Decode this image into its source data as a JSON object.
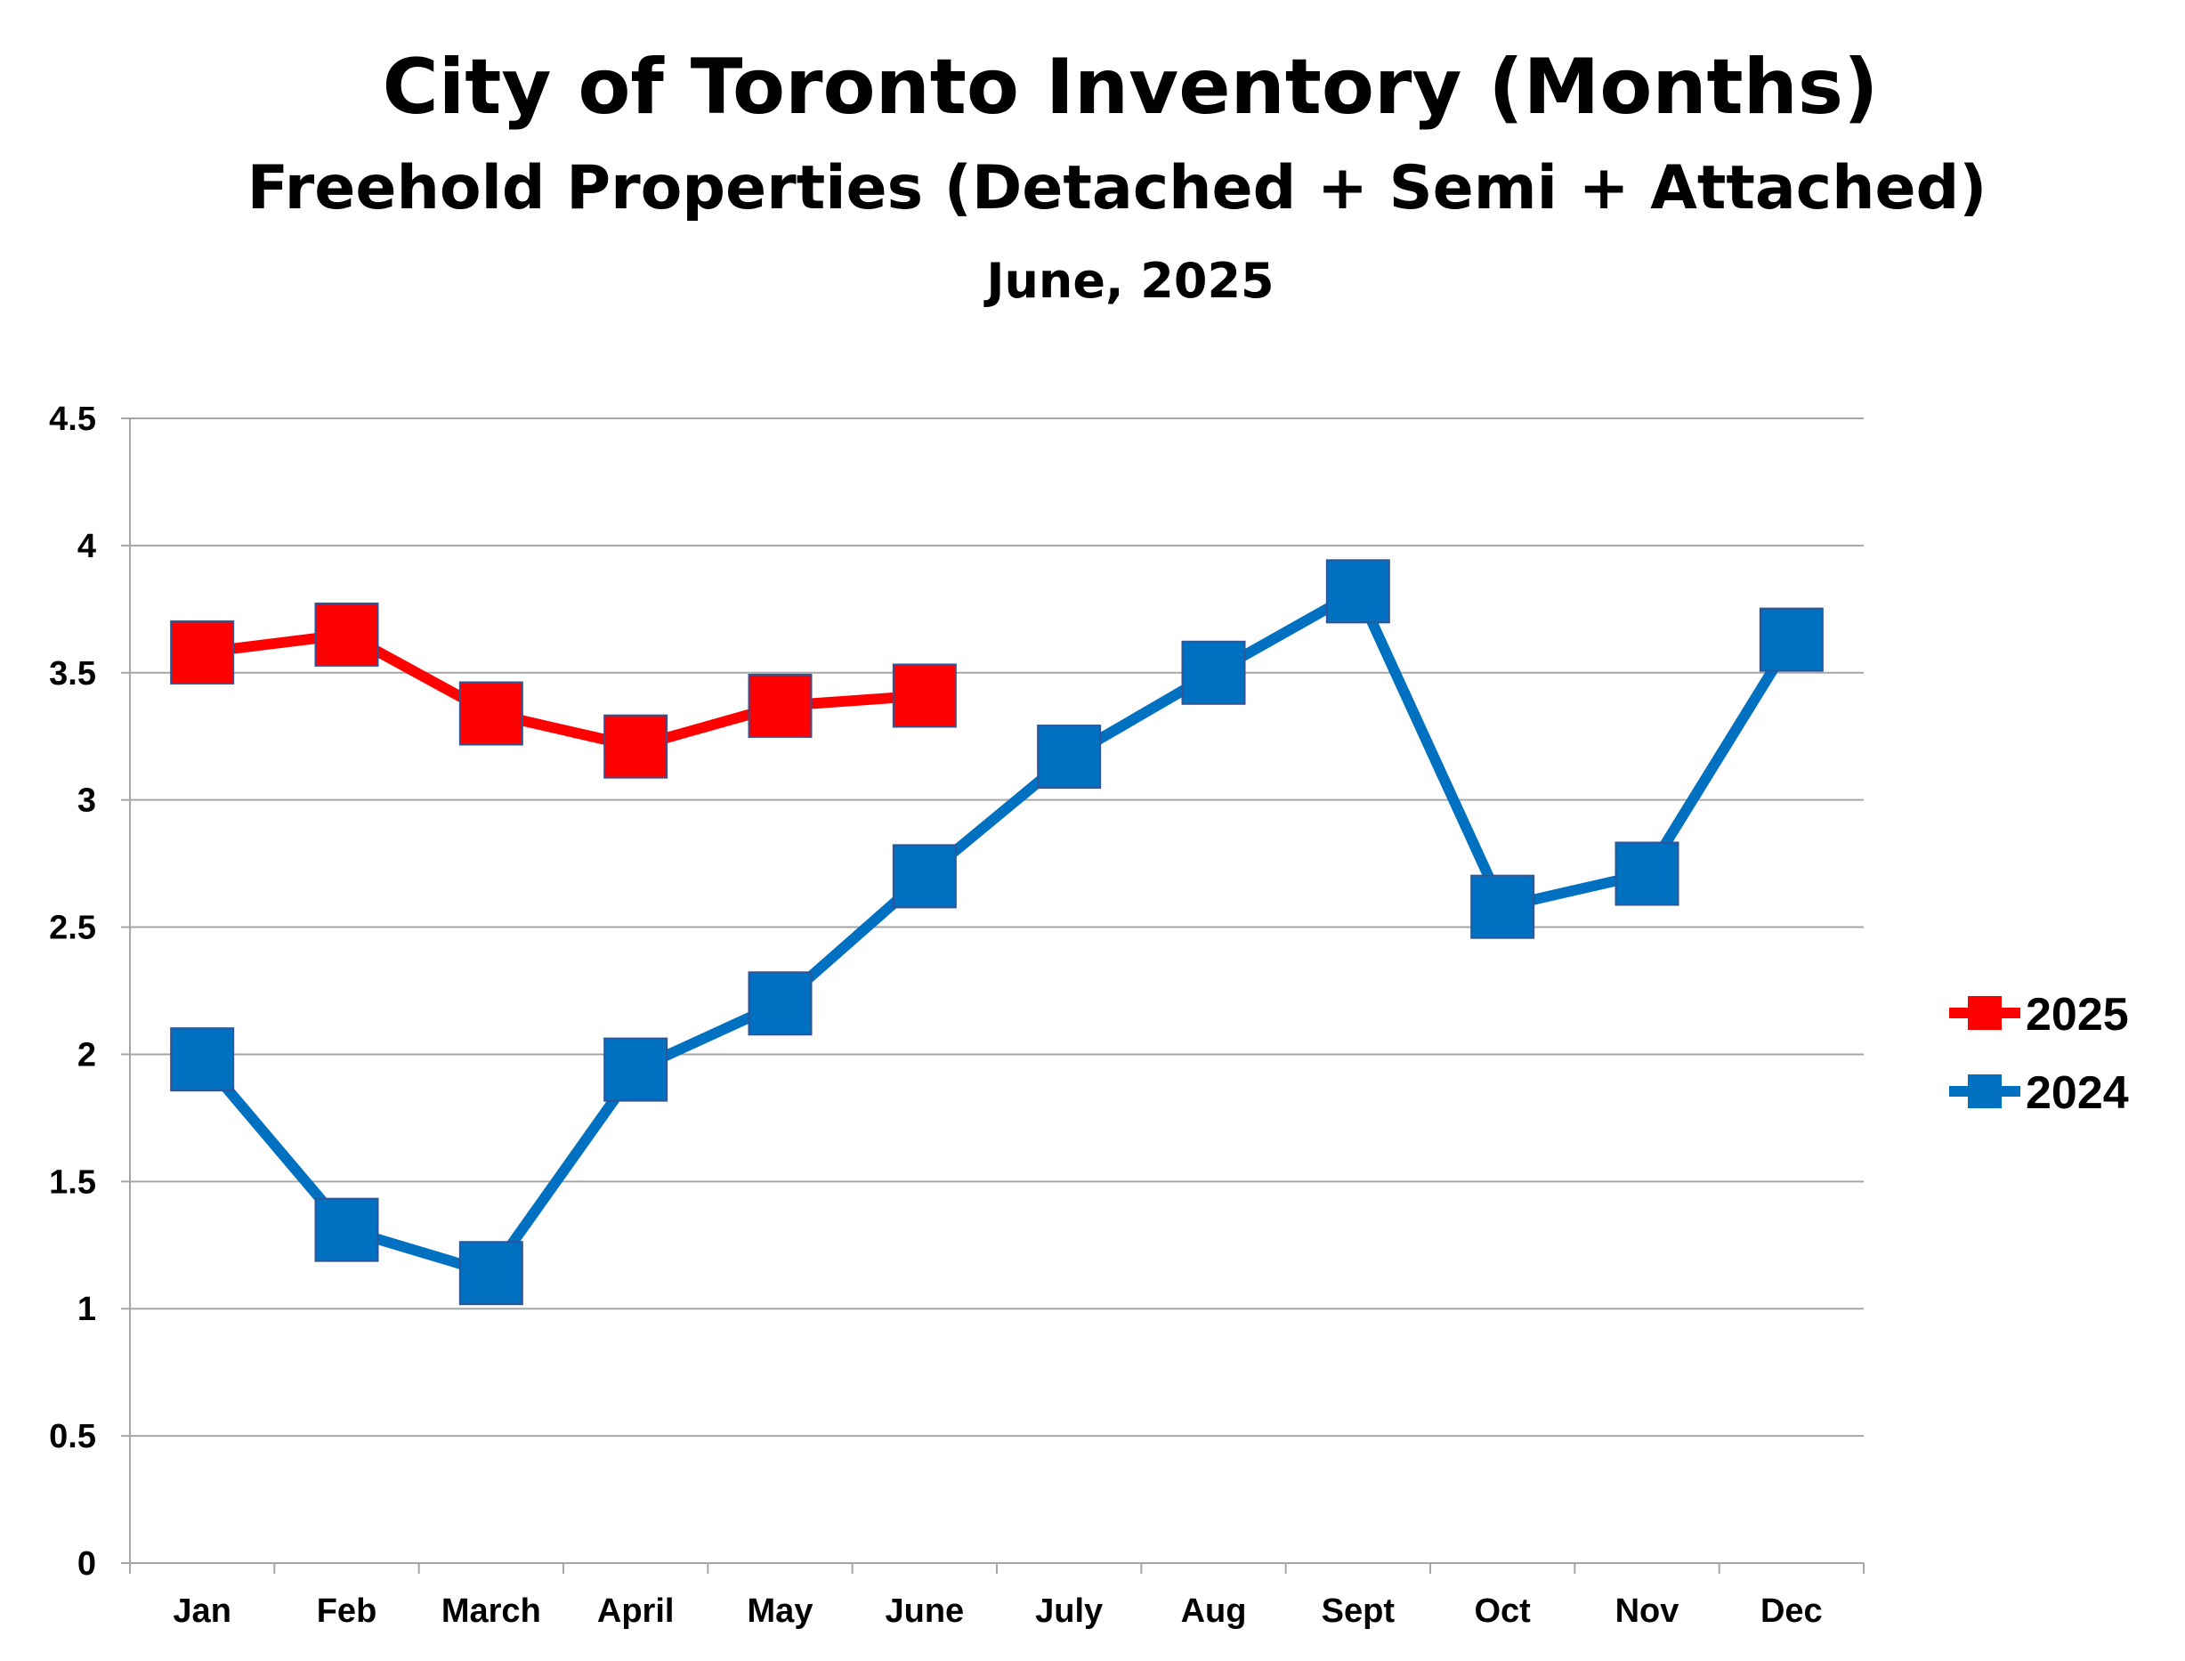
{
  "chart_data": {
    "type": "line",
    "title": "City of Toronto Inventory (Months)",
    "subtitle": "Freehold Properties (Detached + Semi + Attached)",
    "date_label": "June, 2025",
    "categories": [
      "Jan",
      "Feb",
      "March",
      "April",
      "May",
      "June",
      "July",
      "Aug",
      "Sept",
      "Oct",
      "Nov",
      "Dec"
    ],
    "y_ticks": [
      "0",
      "0.5",
      "1",
      "1.5",
      "2",
      "2.5",
      "3",
      "3.5",
      "4",
      "4.5"
    ],
    "ylim": [
      0,
      4.5
    ],
    "grid": true,
    "legend_position": "right",
    "series": [
      {
        "name": "2025",
        "color": "#ff0000",
        "values": [
          3.58,
          3.65,
          3.34,
          3.21,
          3.37,
          3.41,
          null,
          null,
          null,
          null,
          null,
          null
        ]
      },
      {
        "name": "2024",
        "color": "#0070c0",
        "values": [
          1.98,
          1.31,
          1.14,
          1.94,
          2.2,
          2.7,
          3.17,
          3.5,
          3.82,
          2.58,
          2.71,
          3.63
        ]
      }
    ]
  }
}
